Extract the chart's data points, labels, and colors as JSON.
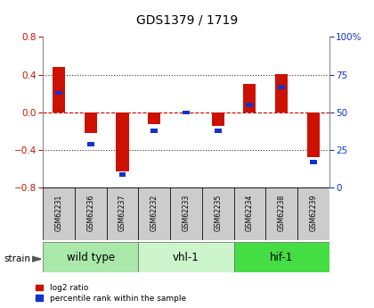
{
  "title": "GDS1379 / 1719",
  "samples": [
    "GSM62231",
    "GSM62236",
    "GSM62237",
    "GSM62232",
    "GSM62233",
    "GSM62235",
    "GSM62234",
    "GSM62238",
    "GSM62239"
  ],
  "log2_ratio": [
    0.48,
    -0.22,
    -0.63,
    -0.12,
    0.0,
    -0.14,
    0.3,
    0.41,
    -0.47
  ],
  "percentile_rank": [
    63,
    29,
    9,
    38,
    50,
    38,
    55,
    67,
    17
  ],
  "groups": [
    {
      "label": "wild type",
      "start": 0,
      "end": 3,
      "color": "#aae8aa"
    },
    {
      "label": "vhl-1",
      "start": 3,
      "end": 6,
      "color": "#ccf5cc"
    },
    {
      "label": "hif-1",
      "start": 6,
      "end": 9,
      "color": "#44dd44"
    }
  ],
  "ylim_left": [
    -0.8,
    0.8
  ],
  "ylim_right": [
    0,
    100
  ],
  "red_color": "#cc1100",
  "blue_color": "#1133cc",
  "label_bg": "#cccccc",
  "bar_width": 0.4
}
